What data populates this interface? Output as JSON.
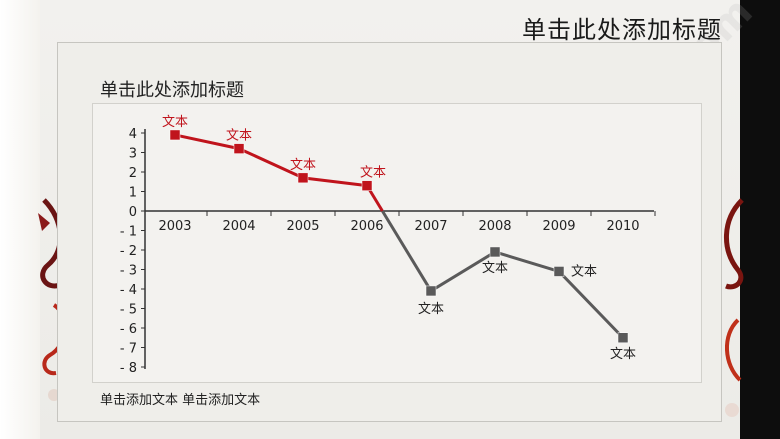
{
  "slide": {
    "title": "单击此处添加标题",
    "footer": "单击添加文本 单击添加文本"
  },
  "colors": {
    "positive_series": "#c0141c",
    "negative_series": "#5a5a5a",
    "axis": "#333333"
  },
  "chart_data": {
    "type": "line",
    "title": "单击此处添加标题",
    "xlabel": "",
    "ylabel": "",
    "categories": [
      "2003",
      "2004",
      "2005",
      "2006",
      "2007",
      "2008",
      "2009",
      "2010"
    ],
    "values": [
      3.9,
      3.2,
      1.7,
      1.3,
      -4.1,
      -2.1,
      -3.1,
      -6.5
    ],
    "ylim": [
      -8,
      4
    ],
    "yticks": [
      "4",
      "3",
      "2",
      "1",
      "0",
      "- 1",
      "- 2",
      "- 3",
      "- 4",
      "- 5",
      "- 6",
      "- 7",
      "- 8"
    ],
    "point_labels": [
      "文本",
      "文本",
      "文本",
      "文本",
      "文本",
      "文本",
      "文本",
      "文本"
    ],
    "grid": false,
    "legend": "none"
  }
}
